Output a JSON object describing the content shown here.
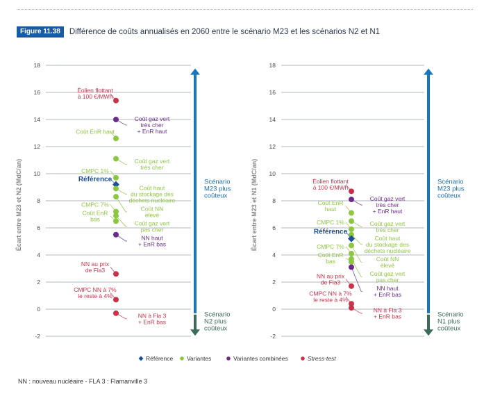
{
  "figure": {
    "badge": "Figure 11.38",
    "title": "Différence de coûts annualisés en 2060 entre le scénario M23 et les scénarios N2 et N1"
  },
  "footnote": "NN : nouveau nucléaire - FLA 3 : Flamanville 3",
  "colors": {
    "reference": "#1c4f9c",
    "variantes": "#8dc63f",
    "combinees": "#6b2c8a",
    "stress": "#c8334a",
    "arrow_up": "#1a75bb",
    "arrow_down": "#3a6b5a",
    "grid": "#9aa0a6",
    "axis_text": "#4a4a4a"
  },
  "legend": [
    {
      "key": "reference",
      "label": "Référence",
      "marker": "diamond"
    },
    {
      "key": "variantes",
      "label": "Variantes",
      "marker": "circle"
    },
    {
      "key": "combinees",
      "label": "Variantes combinées",
      "marker": "circle"
    },
    {
      "key": "stress",
      "label": "Stress-test",
      "marker": "circle",
      "italic": true
    }
  ],
  "chart_data": [
    {
      "type": "scatter",
      "ylabel": "Écart entre M23 et N2 (MdC/an)",
      "ylim": [
        -2,
        18
      ],
      "yticks": [
        -2,
        0,
        2,
        4,
        6,
        8,
        10,
        12,
        14,
        16,
        18
      ],
      "grid": true,
      "arrow_up_label": [
        "Scénario",
        "M23 plus",
        "coûteux"
      ],
      "arrow_down_label": [
        "Scénario",
        "N2 plus",
        "coûteux"
      ],
      "points": [
        {
          "y": 15.4,
          "cat": "stress",
          "side": "left",
          "label": [
            "Éolien flottant",
            "à 100 €/MWh"
          ]
        },
        {
          "y": 14.0,
          "cat": "combinees",
          "side": "right",
          "label": [
            "Coût gaz vert",
            "très cher",
            "+ EnR haut"
          ]
        },
        {
          "y": 12.6,
          "cat": "variantes",
          "side": "left",
          "label": [
            "Coût EnR haut"
          ]
        },
        {
          "y": 11.1,
          "cat": "variantes",
          "side": "right",
          "label": [
            "Coût gaz vert",
            "très cher"
          ]
        },
        {
          "y": 9.7,
          "cat": "variantes",
          "side": "left",
          "label": [
            "CMPC 1%"
          ]
        },
        {
          "y": 9.2,
          "cat": "reference",
          "side": "left",
          "label": [
            "Référence"
          ]
        },
        {
          "y": 8.9,
          "cat": "variantes",
          "side": "right",
          "label": [
            "Coût haut",
            "du stockage des",
            "déchets nucléaire"
          ]
        },
        {
          "y": 8.3,
          "cat": "variantes",
          "side": "right",
          "label": [
            "Coût NN",
            "élevé"
          ]
        },
        {
          "y": 7.2,
          "cat": "variantes",
          "side": "left",
          "label": [
            "CMPC 7%"
          ]
        },
        {
          "y": 6.9,
          "cat": "variantes",
          "side": "right",
          "label": [
            "Coût gaz vert",
            "pas cher"
          ]
        },
        {
          "y": 6.5,
          "cat": "variantes",
          "side": "left",
          "label": [
            "Coût EnR",
            "bas"
          ]
        },
        {
          "y": 5.5,
          "cat": "combinees",
          "side": "right",
          "label": [
            "NN haut",
            "+ EnR bas"
          ]
        },
        {
          "y": 2.6,
          "cat": "stress",
          "side": "left",
          "label": [
            "NN au prix",
            "de Fla3"
          ]
        },
        {
          "y": 0.7,
          "cat": "stress",
          "side": "left",
          "label": [
            "CMPC NN à 7%",
            "le reste à 4%"
          ]
        },
        {
          "y": -0.3,
          "cat": "stress",
          "side": "right",
          "label": [
            "NN à Fla 3",
            "+ EnR bas"
          ]
        }
      ]
    },
    {
      "type": "scatter",
      "ylabel": "Écart entre M23 et N1 (MdC/an)",
      "ylim": [
        -2,
        18
      ],
      "yticks": [
        -2,
        0,
        2,
        4,
        6,
        8,
        10,
        12,
        14,
        16,
        18
      ],
      "grid": true,
      "arrow_up_label": [
        "Scénario",
        "M23 plus",
        "coûteux"
      ],
      "arrow_down_label": [
        "Scénario",
        "N1 plus",
        "coûteux"
      ],
      "points": [
        {
          "y": 8.7,
          "cat": "stress",
          "side": "left",
          "label": [
            "Éolien flottant",
            "à 100 €/MWh"
          ]
        },
        {
          "y": 8.1,
          "cat": "combinees",
          "side": "right",
          "label": [
            "Coût gaz vert",
            "très cher",
            "+ EnR haut"
          ]
        },
        {
          "y": 7.1,
          "cat": "variantes",
          "side": "left",
          "label": [
            "Coût EnR",
            "haut"
          ]
        },
        {
          "y": 6.5,
          "cat": "variantes",
          "side": "right",
          "label": [
            "Coût gaz vert",
            "très cher"
          ]
        },
        {
          "y": 5.9,
          "cat": "variantes",
          "side": "left",
          "label": [
            "CMPC 1%"
          ]
        },
        {
          "y": 5.5,
          "cat": "variantes",
          "side": "right",
          "label": [
            "Coût haut",
            "du stockage des",
            "déchets nucléaire"
          ]
        },
        {
          "y": 5.2,
          "cat": "reference",
          "side": "left",
          "label": [
            "Référence"
          ]
        },
        {
          "y": 4.7,
          "cat": "variantes",
          "side": "right",
          "label": [
            "Coût NN",
            "élevé"
          ]
        },
        {
          "y": 4.1,
          "cat": "variantes",
          "side": "left",
          "label": [
            "CMPC 7%"
          ]
        },
        {
          "y": 3.7,
          "cat": "variantes",
          "side": "right",
          "label": [
            "Coût gaz vert",
            "pas cher"
          ]
        },
        {
          "y": 3.5,
          "cat": "variantes",
          "side": "left",
          "label": [
            "Coût EnR",
            "bas"
          ]
        },
        {
          "y": 3.1,
          "cat": "combinees",
          "side": "right",
          "label": [
            "NN haut",
            "+ EnR bas"
          ]
        },
        {
          "y": 1.7,
          "cat": "stress",
          "side": "left",
          "label": [
            "NN au prix",
            "de Fla3"
          ]
        },
        {
          "y": 0.4,
          "cat": "stress",
          "side": "left",
          "label": [
            "CMPC NN à 7%",
            "le reste à 4%"
          ]
        },
        {
          "y": 0.1,
          "cat": "stress",
          "side": "right",
          "label": [
            "NN à Fla 3",
            "+ EnR bas"
          ]
        }
      ]
    }
  ]
}
